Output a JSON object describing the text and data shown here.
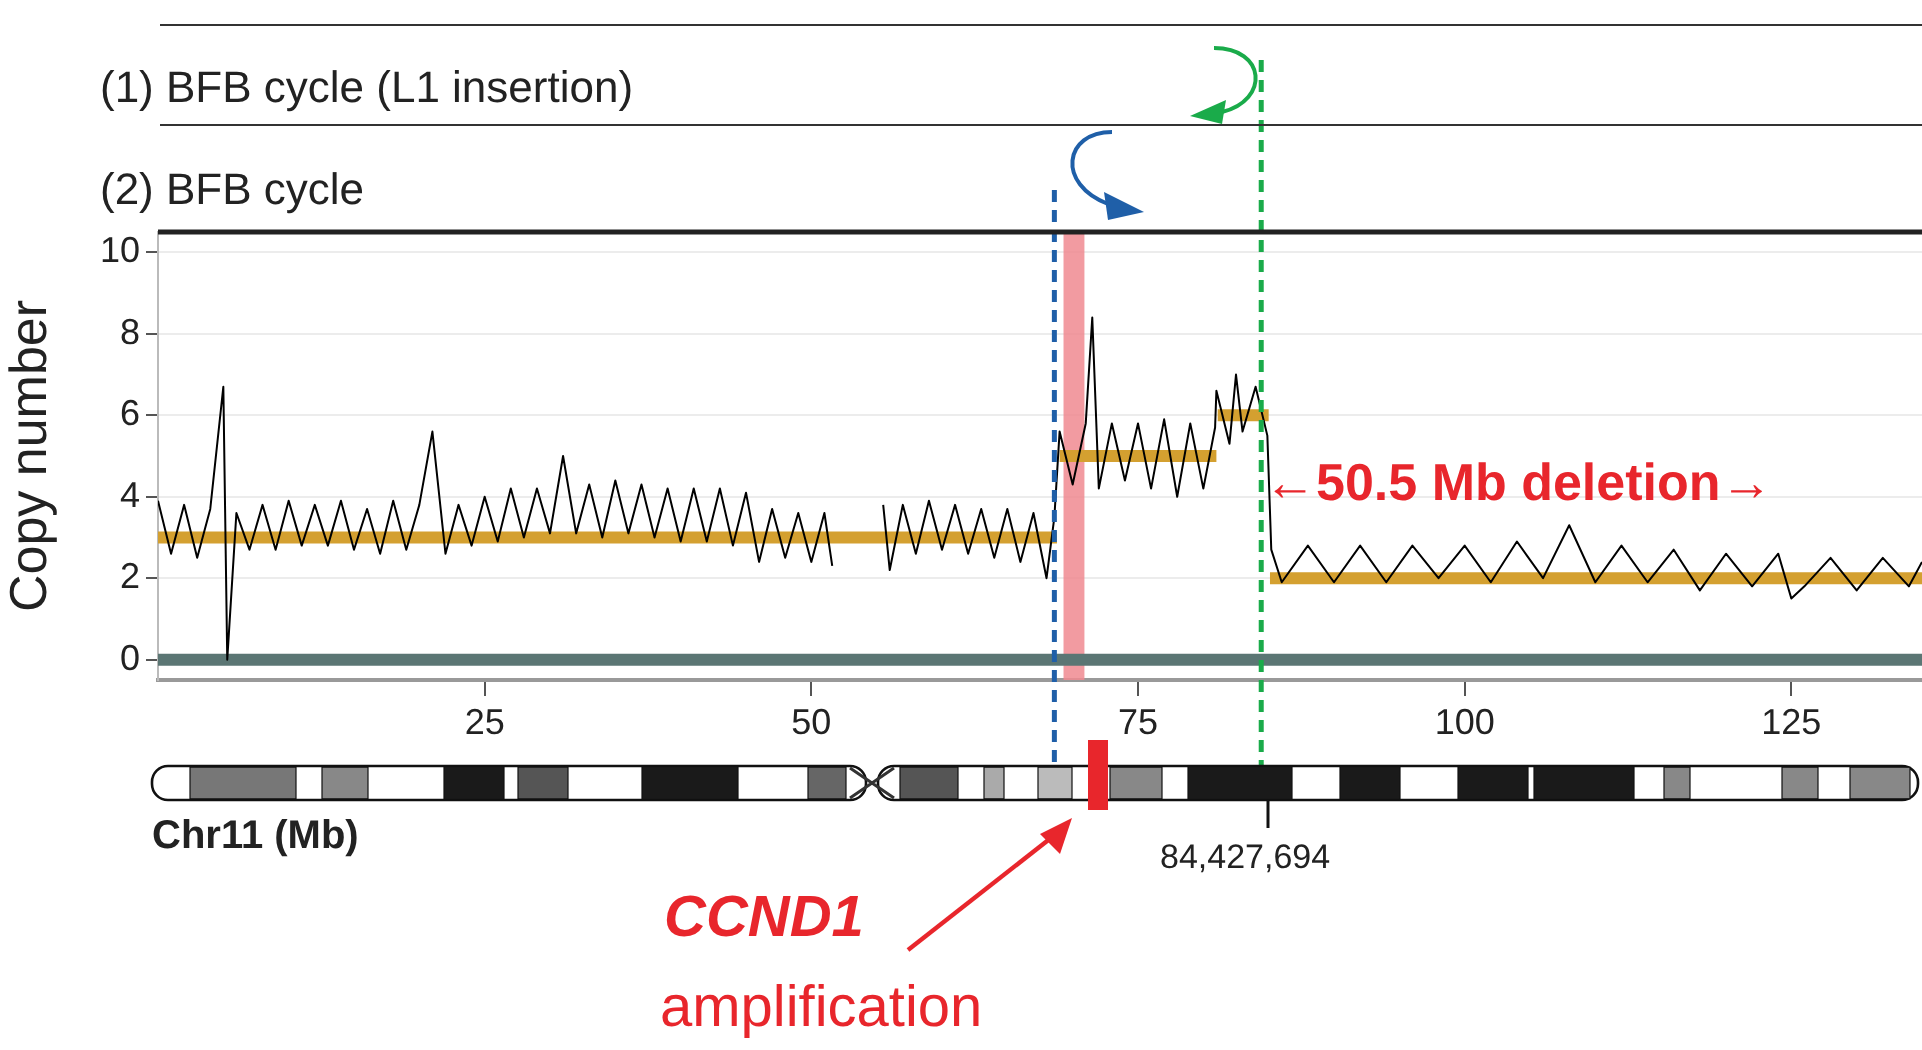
{
  "chart_data": {
    "type": "line",
    "ylabel": "Copy number",
    "xlabel": "Chr11 (Mb)",
    "xlim": [
      0,
      135
    ],
    "xticks": [
      25,
      50,
      75,
      100,
      125
    ],
    "ylim": [
      -0.5,
      10.5
    ],
    "yticks": [
      0,
      2,
      4,
      6,
      8,
      10
    ],
    "grid": "y",
    "marker": "none",
    "series": [
      {
        "color": "#5b7674",
        "x": [
          0,
          135
        ],
        "values": [
          0,
          0
        ]
      },
      {
        "color": "#000000",
        "x": [
          0,
          1,
          2,
          3,
          4,
          5,
          5.3,
          6,
          7,
          8,
          9,
          10,
          11,
          12,
          13,
          14,
          15,
          16,
          17,
          18,
          19,
          20,
          21,
          22,
          23,
          24,
          25,
          26,
          27,
          28,
          29,
          30,
          31,
          32,
          33,
          34,
          35,
          36,
          37,
          38,
          39,
          40,
          41,
          42,
          43,
          44,
          45,
          46,
          47,
          48,
          49,
          50,
          51,
          51.6,
          53,
          55.5,
          56,
          57,
          58,
          59,
          60,
          61,
          62,
          63,
          64,
          65,
          66,
          67,
          68,
          68.6,
          69,
          70,
          71,
          71.5,
          72,
          73,
          74,
          75,
          76,
          77,
          78,
          79,
          80,
          80.9,
          81,
          82,
          82.5,
          83,
          84,
          84.9,
          85.2,
          86,
          88,
          90,
          92,
          94,
          96,
          98,
          100,
          102,
          104,
          106,
          108,
          110,
          112,
          114,
          116,
          118,
          120,
          122,
          124,
          125,
          126,
          128,
          130,
          132,
          134,
          135
        ],
        "values": [
          3.9,
          2.6,
          3.8,
          2.5,
          3.7,
          6.7,
          0,
          3.6,
          2.7,
          3.8,
          2.7,
          3.9,
          2.8,
          3.8,
          2.8,
          3.9,
          2.7,
          3.7,
          2.6,
          3.9,
          2.7,
          3.8,
          5.6,
          2.6,
          3.8,
          2.8,
          4.0,
          2.9,
          4.2,
          3.0,
          4.2,
          3.1,
          5.0,
          3.1,
          4.3,
          3.0,
          4.4,
          3.1,
          4.3,
          3.0,
          4.2,
          2.9,
          4.2,
          2.9,
          4.2,
          2.8,
          4.1,
          2.4,
          3.7,
          2.5,
          3.6,
          2.4,
          3.6,
          2.3,
          null,
          3.8,
          2.2,
          3.8,
          2.6,
          3.9,
          2.7,
          3.8,
          2.6,
          3.7,
          2.5,
          3.7,
          2.4,
          3.6,
          2.0,
          3.5,
          5.6,
          4.3,
          5.8,
          8.4,
          4.2,
          5.8,
          4.4,
          5.8,
          4.2,
          5.9,
          4.0,
          5.8,
          4.2,
          5.7,
          6.6,
          5.3,
          7.0,
          5.6,
          6.7,
          5.5,
          2.7,
          1.9,
          2.8,
          1.9,
          2.8,
          1.9,
          2.8,
          2.0,
          2.8,
          1.9,
          2.9,
          2.0,
          3.3,
          1.9,
          2.8,
          1.9,
          2.7,
          1.7,
          2.6,
          1.8,
          2.6,
          1.5,
          1.8,
          2.5,
          1.7,
          2.5,
          1.8,
          2.4
        ]
      },
      {
        "color": "#d4a030",
        "x": [
          0,
          68.8,
          68.9,
          69,
          81,
          81.05,
          81.1,
          85,
          85.05,
          85.1,
          135
        ],
        "values": [
          3,
          3,
          null,
          5,
          5,
          null,
          6,
          6,
          null,
          2,
          2
        ]
      }
    ],
    "ref_lines": [
      {
        "axis": "x",
        "value": 68.6,
        "color": "#1f5fa8",
        "line_style": "dashed"
      },
      {
        "axis": "x",
        "value": 84.43,
        "color": "#1aab4a",
        "line_style": "dashed"
      }
    ],
    "bands": [
      {
        "axis": "x",
        "from": 69.3,
        "to": 70.9,
        "color": "#f08a90"
      }
    ],
    "annotations": [
      "(1) BFB cycle (L1 insertion)",
      "(2) BFB cycle",
      "←50.5 Mb deletion→",
      "84,427,694",
      "CCND1",
      "amplification"
    ]
  }
}
